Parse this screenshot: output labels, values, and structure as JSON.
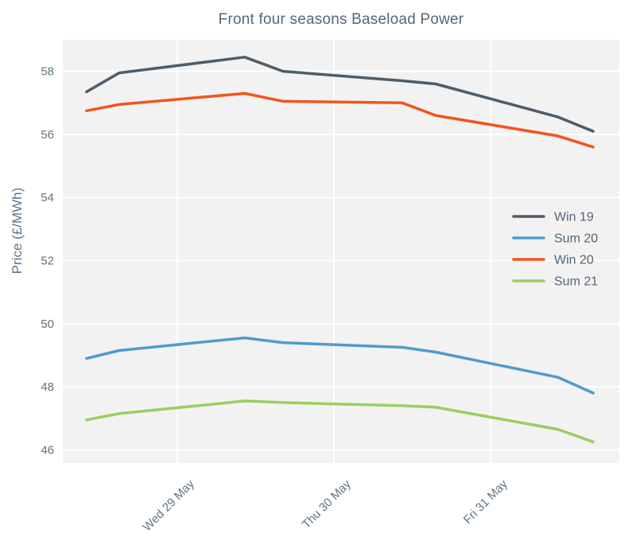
{
  "chart_data": {
    "type": "line",
    "title": "Front four seasons Baseload Power",
    "ylabel": "Price (£/MWh)",
    "xlabel": "",
    "x_unit": "days relative to Wed 29 May 00:00 (two fixings per day, Tue–Fri)",
    "x": [
      -0.579,
      -0.371,
      0.431,
      0.675,
      1.437,
      1.65,
      2.431,
      2.655
    ],
    "series": [
      {
        "name": "Win 19",
        "color": "#4e5d69",
        "values": [
          57.35,
          57.95,
          58.45,
          58.0,
          57.7,
          57.6,
          56.55,
          56.1
        ]
      },
      {
        "name": "Sum 20",
        "color": "#4f9bcb",
        "values": [
          48.9,
          49.15,
          49.55,
          49.4,
          49.25,
          49.1,
          48.3,
          47.8
        ]
      },
      {
        "name": "Win 20",
        "color": "#f2541d",
        "values": [
          56.75,
          56.95,
          57.3,
          57.05,
          57.0,
          56.6,
          55.95,
          55.6
        ]
      },
      {
        "name": "Sum 21",
        "color": "#98cf5f",
        "values": [
          46.95,
          47.15,
          47.55,
          47.5,
          47.4,
          47.35,
          46.65,
          46.25
        ]
      }
    ],
    "x_ticks": [
      {
        "label": "Wed 29 May",
        "day": 0
      },
      {
        "label": "Thu 30 May",
        "day": 1
      },
      {
        "label": "Fri 31 May",
        "day": 2
      }
    ],
    "y_ticks": [
      46,
      48,
      50,
      52,
      54,
      56,
      58
    ],
    "ylim": [
      45.58,
      59.0
    ],
    "xlim_days": [
      -0.731,
      2.822
    ],
    "grid": true,
    "legend_position": "center-right",
    "legend_labels": [
      "Win 19",
      "Sum 20",
      "Win 20",
      "Sum 21"
    ],
    "colors": {
      "background": "#ffffff",
      "plot_background": "#f2f2f2",
      "grid": "#ffffff",
      "tick_text": "#5d7484",
      "title_text": "#546677"
    }
  }
}
